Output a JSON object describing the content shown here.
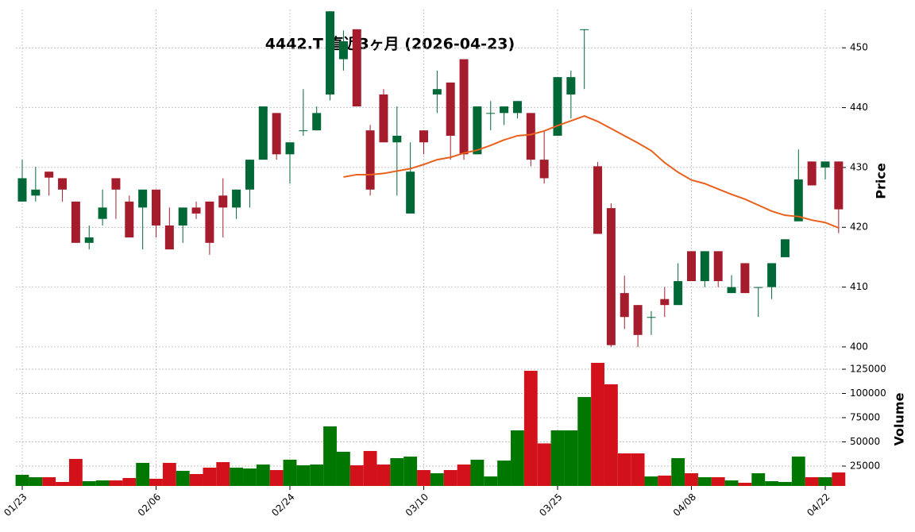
{
  "chart_data": {
    "type": "candlestick",
    "title": "4442.T 直近3ヶ月 (2026-04-23)",
    "ylabel": "Price",
    "categories": [
      "01/23",
      null,
      null,
      null,
      null,
      null,
      null,
      null,
      null,
      null,
      "02/06",
      null,
      null,
      null,
      null,
      null,
      null,
      null,
      null,
      null,
      "02/24",
      null,
      null,
      null,
      null,
      null,
      null,
      null,
      null,
      null,
      "03/10",
      null,
      null,
      null,
      null,
      null,
      null,
      null,
      null,
      null,
      "03/25",
      null,
      null,
      null,
      null,
      null,
      null,
      null,
      null,
      null,
      "04/08",
      null,
      null,
      null,
      null,
      null,
      null,
      null,
      null,
      null,
      "04/22",
      null
    ],
    "open": [
      424.3,
      425.3,
      429.3,
      428.2,
      424.3,
      417.4,
      421.4,
      428.2,
      424.3,
      423.3,
      426.3,
      420.3,
      420.3,
      423.3,
      424.3,
      425.3,
      423.3,
      426.3,
      431.3,
      439.1,
      432.2,
      436.2,
      436.2,
      442.2,
      448.1,
      453.1,
      436.2,
      442.2,
      434.2,
      422.3,
      436.2,
      442.2,
      444.2,
      448.1,
      432.2,
      439.1,
      439.1,
      439.1,
      439.1,
      431.3,
      435.3,
      442.2,
      453.1,
      430.2,
      423.2,
      409,
      407,
      405,
      408,
      407,
      416,
      411,
      416,
      409,
      414,
      410,
      410,
      415,
      421,
      431,
      430,
      431
    ],
    "high": [
      431.3,
      430.1,
      429.3,
      428.2,
      424.3,
      420.3,
      426.3,
      428.2,
      425.3,
      426.3,
      426.3,
      423.3,
      423.3,
      424.3,
      424.3,
      428.2,
      426.3,
      431.3,
      440.2,
      439.1,
      434.2,
      443.1,
      440.2,
      456.1,
      452.9,
      453.1,
      437.1,
      443.1,
      440.2,
      434.2,
      436.2,
      446.2,
      444.2,
      448.1,
      440.2,
      441.1,
      440.2,
      441.1,
      439.1,
      436.2,
      445.1,
      446.2,
      453.1,
      430.9,
      424,
      411.9,
      407,
      406,
      410,
      414,
      416,
      416,
      416,
      412,
      414,
      410,
      414,
      418,
      433,
      431,
      431,
      431
    ],
    "low": [
      424.3,
      424.3,
      425.3,
      424.3,
      417.4,
      416.3,
      420.3,
      421.4,
      418.3,
      416.3,
      418.3,
      416.3,
      417.4,
      421.4,
      415.4,
      418.3,
      421.4,
      423.3,
      431.3,
      431.3,
      427.3,
      435.3,
      436.2,
      441.2,
      446.2,
      440.2,
      425.3,
      434.2,
      425.3,
      422.3,
      432.2,
      439.1,
      431.3,
      431.3,
      432.2,
      436.2,
      437.1,
      438.2,
      430.2,
      427.3,
      435.3,
      438.2,
      443.1,
      418.9,
      400,
      403,
      400,
      402,
      405,
      407,
      411,
      410,
      410,
      409,
      409,
      405,
      408,
      415,
      421,
      427,
      428,
      419
    ],
    "close": [
      428.2,
      426.3,
      428.3,
      426.3,
      417.4,
      418.3,
      423.3,
      426.3,
      418.3,
      426.3,
      420.3,
      416.3,
      423.3,
      422.3,
      417.4,
      423.3,
      426.3,
      431.3,
      440.2,
      432.2,
      434.2,
      436.2,
      439.1,
      456.1,
      451.1,
      440.2,
      426.3,
      434.2,
      435.3,
      429.3,
      434.2,
      443.1,
      435.3,
      432.2,
      440.2,
      439.1,
      440.2,
      441.1,
      431.3,
      428.2,
      445.1,
      445.1,
      453.1,
      418.9,
      400.3,
      405,
      402,
      405,
      407,
      411,
      411,
      416,
      411,
      410,
      409,
      410,
      414,
      418,
      428,
      427,
      431,
      423
    ],
    "up_color": "#006837",
    "down_color": "#a51d2d",
    "ma": {
      "color": "#e8601c",
      "values": [
        null,
        null,
        null,
        null,
        null,
        null,
        null,
        null,
        null,
        null,
        null,
        null,
        null,
        null,
        null,
        null,
        null,
        null,
        null,
        null,
        null,
        null,
        null,
        null,
        428.4,
        428.8,
        428.8,
        429.0,
        429.4,
        429.8,
        430.5,
        431.3,
        431.7,
        432.4,
        432.9,
        433.7,
        434.6,
        435.3,
        435.5,
        436.1,
        437.0,
        437.8,
        438.6,
        437.7,
        436.5,
        435.3,
        434.1,
        432.8,
        430.8,
        429.2,
        427.9,
        427.3,
        426.4,
        425.5,
        424.7,
        423.7,
        422.7,
        422.0,
        421.8,
        421.2,
        420.8,
        419.9
      ]
    },
    "ylim": [
      397.6,
      456.4
    ],
    "yticks": [
      400,
      410,
      420,
      430,
      440,
      450
    ],
    "grid": true,
    "volume": {
      "ylabel": "Volume",
      "up_color": "#007800",
      "down_color": "#d2111b",
      "values": [
        16000,
        13500,
        13500,
        8600,
        32400,
        9400,
        10200,
        10200,
        12700,
        28300,
        11900,
        28300,
        20100,
        16800,
        23400,
        29100,
        23400,
        22500,
        26600,
        20900,
        31600,
        25800,
        26600,
        66000,
        39800,
        25800,
        40600,
        26600,
        33200,
        34800,
        20900,
        17600,
        20900,
        26600,
        31600,
        14300,
        30700,
        61900,
        123400,
        48400,
        61900,
        61900,
        96300,
        131600,
        109400,
        38100,
        38100,
        14300,
        15200,
        33200,
        17600,
        13500,
        13500,
        10200,
        7800,
        17600,
        9400,
        8600,
        34800,
        13500,
        13500,
        18400
      ],
      "ylim": [
        4500,
        133200
      ],
      "yticks": [
        25000,
        50000,
        75000,
        100000,
        125000
      ]
    }
  }
}
